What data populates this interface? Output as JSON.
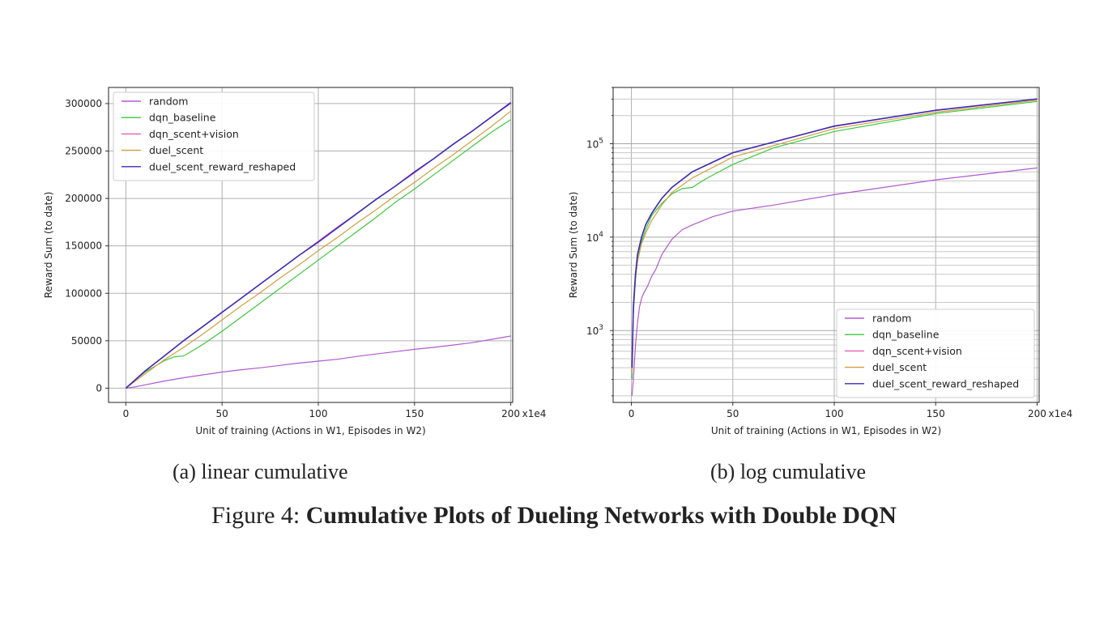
{
  "chart_data": [
    {
      "type": "line",
      "caption": "(a) linear cumulative",
      "xlabel": "Unit of training (Actions in W1, Episodes in W2)",
      "ylabel": "Reward Sum (to date)",
      "x_scale_note": "x1e4",
      "yscale": "linear",
      "xlim": [
        -9,
        201
      ],
      "ylim": [
        -15000,
        317000
      ],
      "xticks": [
        0,
        50,
        100,
        150,
        200
      ],
      "yticks": [
        0,
        50000,
        100000,
        150000,
        200000,
        250000,
        300000
      ],
      "ytick_labels": [
        "0",
        "50000",
        "100000",
        "150000",
        "200000",
        "250000",
        "300000"
      ],
      "grid": true,
      "legend_position": "upper-left",
      "series": [
        {
          "name": "random",
          "color": "#b05ad0",
          "x": [
            0,
            5,
            10,
            20,
            30,
            40,
            50,
            60,
            70,
            80,
            90,
            100,
            110,
            120,
            130,
            140,
            150,
            160,
            170,
            180,
            190,
            200
          ],
          "y": [
            0,
            1500,
            3500,
            7500,
            11000,
            14000,
            17000,
            19500,
            21500,
            24000,
            26500,
            28500,
            30500,
            33500,
            36000,
            38500,
            41000,
            43000,
            45500,
            48000,
            51500,
            55000
          ]
        },
        {
          "name": "dqn_baseline",
          "color": "#3cc83c",
          "x": [
            0,
            5,
            10,
            15,
            20,
            25,
            30,
            35,
            40,
            50,
            60,
            70,
            80,
            90,
            100,
            110,
            120,
            130,
            140,
            150,
            160,
            170,
            180,
            190,
            200
          ],
          "y": [
            0,
            9000,
            17000,
            23000,
            29000,
            33000,
            34000,
            40000,
            46000,
            60000,
            75000,
            90000,
            105000,
            120000,
            135000,
            150000,
            165000,
            180000,
            196000,
            210000,
            225000,
            240000,
            255000,
            270000,
            283000
          ]
        },
        {
          "name": "dqn_scent+vision",
          "color": "#e060b0",
          "x": [
            0,
            10,
            20,
            30,
            40,
            50,
            60,
            70,
            80,
            90,
            100,
            110,
            120,
            130,
            140,
            150,
            160,
            170,
            180,
            190,
            200
          ],
          "y": [
            0,
            18000,
            34000,
            50000,
            65000,
            80000,
            95000,
            110000,
            125000,
            140000,
            155000,
            170000,
            184000,
            199000,
            213000,
            227000,
            242000,
            257000,
            271000,
            286000,
            300000
          ]
        },
        {
          "name": "duel_scent",
          "color": "#d0a040",
          "x": [
            0,
            10,
            20,
            30,
            40,
            50,
            60,
            70,
            80,
            90,
            100,
            110,
            120,
            130,
            140,
            150,
            160,
            170,
            180,
            190,
            200
          ],
          "y": [
            0,
            15000,
            30000,
            43000,
            57000,
            72000,
            87000,
            101000,
            116000,
            130000,
            145000,
            159000,
            174000,
            188000,
            203000,
            217000,
            232000,
            246000,
            261000,
            276000,
            292000
          ]
        },
        {
          "name": "duel_scent_reward_reshaped",
          "color": "#3c2ab4",
          "x": [
            0,
            10,
            20,
            30,
            40,
            50,
            60,
            70,
            80,
            90,
            100,
            110,
            120,
            130,
            140,
            150,
            160,
            170,
            180,
            190,
            200
          ],
          "y": [
            0,
            18000,
            34000,
            50000,
            65000,
            80000,
            95000,
            110000,
            125000,
            140000,
            154000,
            169000,
            184000,
            199000,
            213000,
            228000,
            242000,
            257000,
            271000,
            286000,
            301000
          ]
        }
      ]
    },
    {
      "type": "line",
      "caption": "(b) log cumulative",
      "xlabel": "Unit of training (Actions in W1, Episodes in W2)",
      "ylabel": "Reward Sum (to date)",
      "x_scale_note": "x1e4",
      "yscale": "log",
      "xlim": [
        -9,
        201
      ],
      "ylim": [
        170,
        400000
      ],
      "xticks": [
        0,
        50,
        100,
        150,
        200
      ],
      "yticks_major": [
        1000,
        10000,
        100000
      ],
      "ytick_labels": [
        {
          "base": "10",
          "exp": "3"
        },
        {
          "base": "10",
          "exp": "4"
        },
        {
          "base": "10",
          "exp": "5"
        }
      ],
      "grid": true,
      "legend_position": "lower-right",
      "series": [
        {
          "name": "random",
          "color": "#b05ad0",
          "x": [
            0.3,
            1,
            2,
            3,
            4,
            5,
            6,
            8,
            10,
            12,
            15,
            20,
            25,
            30,
            40,
            50,
            70,
            100,
            150,
            200
          ],
          "y": [
            200,
            300,
            700,
            1200,
            1800,
            2200,
            2500,
            3000,
            3800,
            4500,
            6500,
            9500,
            12000,
            13500,
            16500,
            19000,
            22000,
            28500,
            41000,
            55000
          ]
        },
        {
          "name": "dqn_baseline",
          "color": "#3cc83c",
          "x": [
            0.3,
            1,
            2,
            3,
            4,
            5,
            7,
            10,
            15,
            20,
            25,
            30,
            35,
            40,
            50,
            70,
            100,
            150,
            200
          ],
          "y": [
            300,
            1500,
            3500,
            5500,
            7200,
            9000,
            12000,
            17000,
            23000,
            29000,
            33000,
            34000,
            40000,
            46000,
            60000,
            90000,
            135000,
            210000,
            283000
          ]
        },
        {
          "name": "dqn_scent+vision",
          "color": "#e060b0",
          "x": [
            0.3,
            1,
            2,
            3,
            5,
            7,
            10,
            15,
            20,
            30,
            50,
            100,
            150,
            200
          ],
          "y": [
            400,
            1800,
            4000,
            6500,
            10000,
            13500,
            18000,
            26000,
            34000,
            50000,
            80000,
            155000,
            227000,
            300000
          ]
        },
        {
          "name": "duel_scent",
          "color": "#d0a040",
          "x": [
            0.3,
            1,
            2,
            3,
            5,
            7,
            10,
            15,
            20,
            30,
            50,
            100,
            150,
            200
          ],
          "y": [
            350,
            1600,
            3500,
            5500,
            8500,
            11000,
            15000,
            22000,
            30000,
            43000,
            72000,
            145000,
            217000,
            292000
          ]
        },
        {
          "name": "duel_scent_reward_reshaped",
          "color": "#3c2ab4",
          "x": [
            0.3,
            1,
            2,
            3,
            5,
            7,
            10,
            15,
            20,
            30,
            50,
            100,
            150,
            200
          ],
          "y": [
            400,
            1800,
            4000,
            6500,
            10000,
            13500,
            18000,
            26000,
            34000,
            50000,
            80000,
            154000,
            228000,
            301000
          ]
        }
      ]
    }
  ],
  "figure_caption": {
    "label": "Figure 4:",
    "title": "Cumulative Plots of Dueling Networks with Double DQN"
  }
}
